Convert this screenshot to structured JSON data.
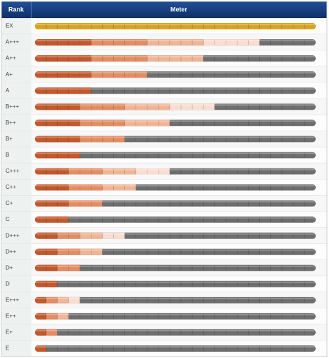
{
  "header": {
    "rank": "Rank",
    "meter": "Meter"
  },
  "meter": {
    "segments": 25,
    "tier_colors": [
      "#c2582c",
      "#e38d63",
      "#f0b596",
      "#f9ddd0"
    ],
    "empty_color": "#6e6e6e",
    "ex_color": "#d9a520"
  },
  "rows": [
    {
      "rank": "EX",
      "tiers": [
        25
      ],
      "color": "ex"
    },
    {
      "rank": "A+++",
      "tiers": [
        5,
        5,
        5,
        5
      ]
    },
    {
      "rank": "A++",
      "tiers": [
        5,
        5,
        5
      ]
    },
    {
      "rank": "A+",
      "tiers": [
        5,
        5
      ]
    },
    {
      "rank": "A",
      "tiers": [
        5
      ]
    },
    {
      "rank": "B+++",
      "tiers": [
        4,
        4,
        4,
        4
      ]
    },
    {
      "rank": "B++",
      "tiers": [
        4,
        4,
        4
      ]
    },
    {
      "rank": "B+",
      "tiers": [
        4,
        4
      ]
    },
    {
      "rank": "B",
      "tiers": [
        4
      ]
    },
    {
      "rank": "C+++",
      "tiers": [
        3,
        3,
        3,
        3
      ]
    },
    {
      "rank": "C++",
      "tiers": [
        3,
        3,
        3
      ]
    },
    {
      "rank": "C+",
      "tiers": [
        3,
        3
      ]
    },
    {
      "rank": "C",
      "tiers": [
        3
      ]
    },
    {
      "rank": "D+++",
      "tiers": [
        2,
        2,
        2,
        2
      ]
    },
    {
      "rank": "D++",
      "tiers": [
        2,
        2,
        2
      ]
    },
    {
      "rank": "D+",
      "tiers": [
        2,
        2
      ]
    },
    {
      "rank": "D",
      "tiers": [
        2
      ]
    },
    {
      "rank": "E+++",
      "tiers": [
        1,
        1,
        1,
        1
      ]
    },
    {
      "rank": "E++",
      "tiers": [
        1,
        1,
        1
      ]
    },
    {
      "rank": "E+",
      "tiers": [
        1,
        1
      ]
    },
    {
      "rank": "E",
      "tiers": [
        1
      ]
    }
  ]
}
